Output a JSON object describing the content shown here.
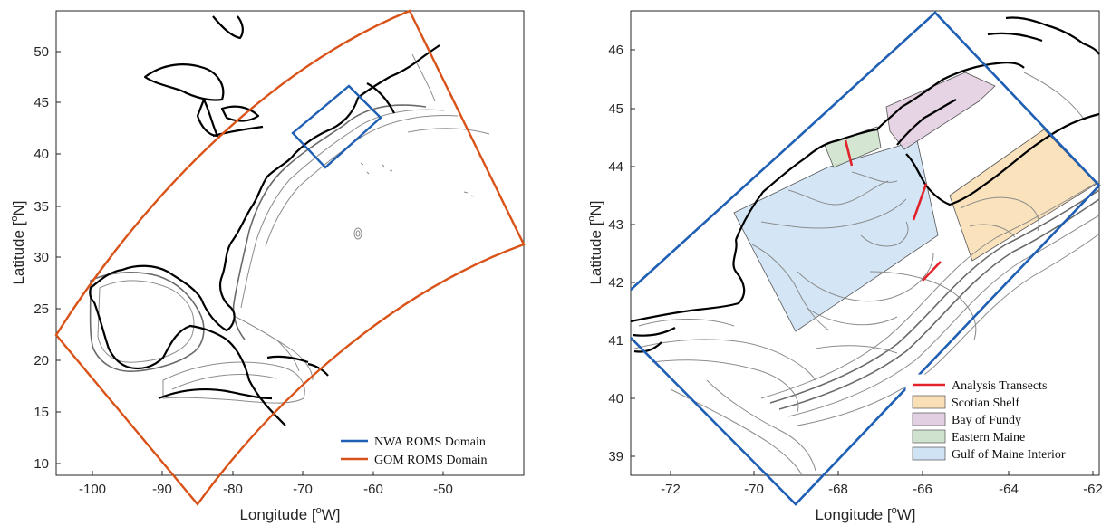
{
  "left_panel": {
    "xlabel_main": "Longitude [",
    "xlabel_sup": "o",
    "xlabel_tail": "W]",
    "ylabel_main": "Latitude [",
    "ylabel_sup": "o",
    "ylabel_tail": "N]",
    "xticks": [
      "-100",
      "-90",
      "-80",
      "-70",
      "-60",
      "-50"
    ],
    "yticks": [
      "50",
      "45",
      "40",
      "35",
      "30",
      "25",
      "20",
      "15",
      "10"
    ],
    "legend": [
      {
        "label": "NWA ROMS Domain",
        "color": "#1f5fb4"
      },
      {
        "label": "GOM ROMS Domain",
        "color": "#d95319"
      }
    ]
  },
  "right_panel": {
    "xlabel_main": "Longitude [",
    "xlabel_sup": "o",
    "xlabel_tail": "W]",
    "ylabel_main": "Latitude [",
    "ylabel_sup": "o",
    "ylabel_tail": "N]",
    "xticks": [
      "-72",
      "-70",
      "-68",
      "-66",
      "-64",
      "-62"
    ],
    "yticks": [
      "46",
      "45",
      "44",
      "43",
      "42",
      "41",
      "40",
      "39"
    ],
    "legend": [
      {
        "label": "Analysis Transects",
        "kind": "line",
        "color": "#e3232b"
      },
      {
        "label": "Scotian Shelf",
        "kind": "patch",
        "color": "#f9dfb6"
      },
      {
        "label": "Bay of Fundy",
        "kind": "patch",
        "color": "#e3cfe2"
      },
      {
        "label": "Eastern Maine",
        "kind": "patch",
        "color": "#cfe2cd"
      },
      {
        "label": "Gulf of Maine Interior",
        "kind": "patch",
        "color": "#cfe3f5"
      }
    ]
  },
  "colors": {
    "nwa_domain": "#1f5fb4",
    "gom_domain": "#d95319",
    "transect": "#e3232b",
    "coastline": "#000000",
    "bathymetry": "#8c8c8c"
  }
}
